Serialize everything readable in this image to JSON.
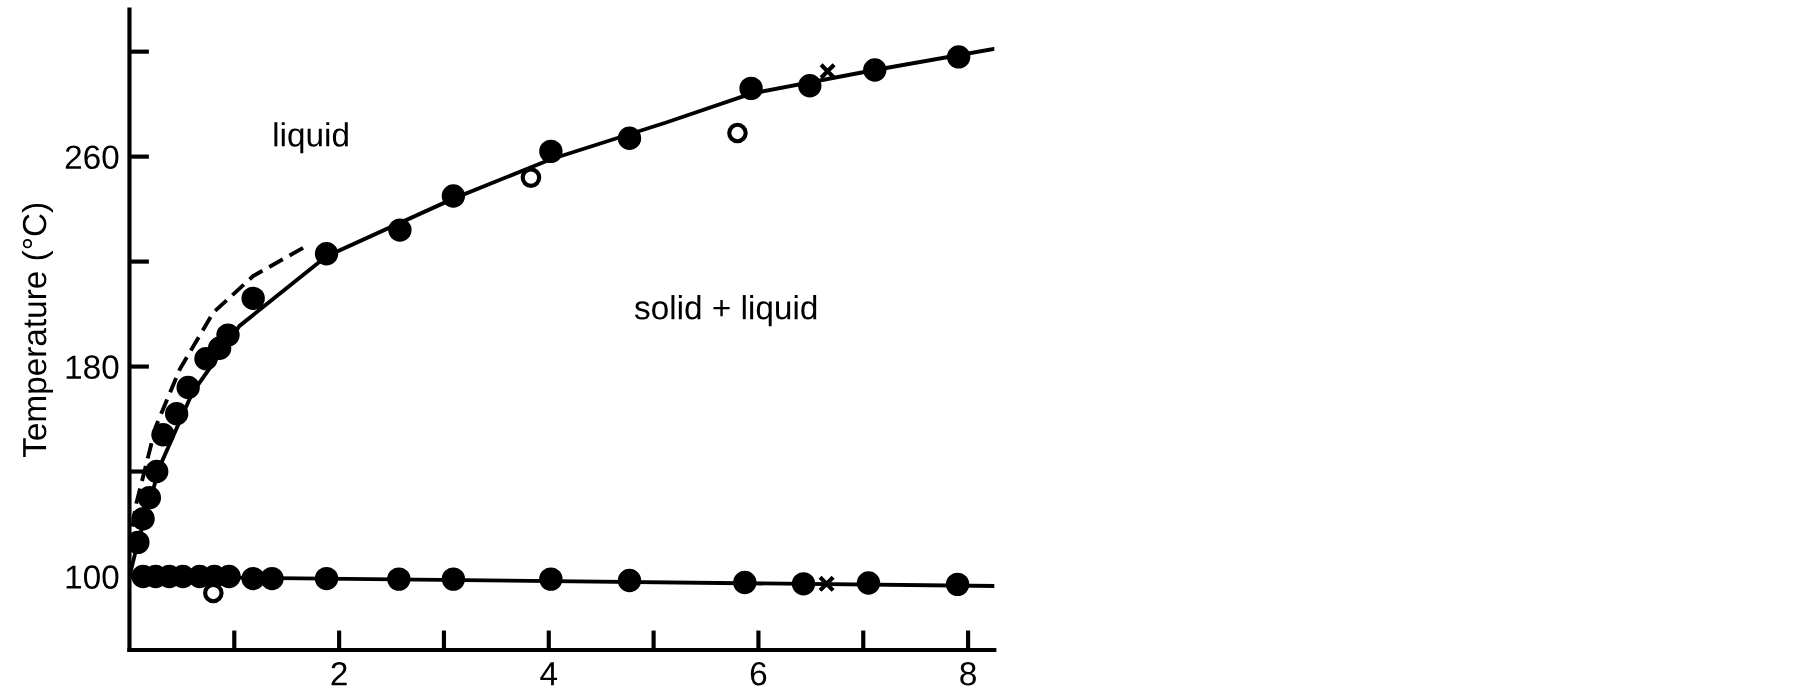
{
  "chart_data": {
    "type": "scatter",
    "ylabel": "Temperature (°C)",
    "xlim": [
      0,
      8.25
    ],
    "ylim": [
      72,
      316
    ],
    "xticks": [
      {
        "value": 1,
        "label": null
      },
      2,
      {
        "value": 3,
        "label": null
      },
      4,
      {
        "value": 5,
        "label": null
      },
      6,
      {
        "value": 7,
        "label": null
      },
      8
    ],
    "yticks": [
      100,
      {
        "value": 140,
        "label": null
      },
      180,
      {
        "value": 220,
        "label": null
      },
      260,
      {
        "value": 300,
        "label": null
      }
    ],
    "grid": false,
    "legend": false,
    "annotations": [
      "liquid",
      "solid + liquid"
    ],
    "series": [
      {
        "type": "line",
        "color": "#000000",
        "line_style": "solid",
        "marker": "none",
        "x": [
          0,
          0.08,
          0.29,
          0.6,
          1.05,
          1.88,
          3.09,
          4.02,
          5.12,
          5.93,
          7.11,
          8.24
        ],
        "values": [
          100,
          113,
          142,
          170,
          195.5,
          222,
          244,
          259,
          273,
          284,
          293,
          301
        ]
      },
      {
        "type": "line",
        "color": "#000000",
        "line_style": "dashed",
        "marker": "none",
        "x": [
          0.03,
          0.06,
          0.25,
          0.48,
          0.8,
          1.18,
          1.69
        ],
        "values": [
          119,
          127,
          157,
          179,
          200.6,
          214.5,
          226
        ]
      },
      {
        "type": "line",
        "color": "#000000",
        "line_style": "solid",
        "marker": "none",
        "x": [
          0,
          8.24
        ],
        "values": [
          100,
          96.4
        ]
      },
      {
        "color": "#000000",
        "marker": "circle",
        "x": [
          0.08,
          0.13,
          0.19,
          0.26,
          0.32,
          0.45,
          0.56,
          0.73,
          0.86,
          0.94,
          1.18,
          1.88,
          2.58,
          3.09,
          4.02,
          4.77,
          5.93,
          6.49,
          7.11,
          7.91
        ],
        "values": [
          113,
          122,
          130,
          140,
          154,
          162,
          172,
          183,
          187,
          192,
          206,
          223,
          232,
          245,
          262,
          267,
          286,
          287,
          293,
          298
        ]
      },
      {
        "color": "#000000",
        "marker": "circle",
        "x": [
          0.13,
          0.25,
          0.38,
          0.51,
          0.67,
          0.81,
          0.95,
          1.18,
          1.36,
          1.88,
          2.57,
          3.09,
          4.02,
          4.77,
          5.87,
          6.43,
          7.05,
          7.9
        ],
        "values": [
          100,
          100,
          100,
          100,
          100,
          100,
          100,
          99.2,
          99.2,
          99.2,
          99,
          99,
          99,
          98.5,
          97.7,
          97.2,
          97.5,
          97
        ]
      },
      {
        "color": "#000000",
        "marker": "open circle",
        "x": [
          3.83,
          5.8,
          0.8
        ],
        "values": [
          252,
          269,
          93.7
        ]
      },
      {
        "color": "#000000",
        "marker": "cross",
        "x": [
          6.66,
          6.65
        ],
        "values": [
          292.5,
          97.2
        ]
      }
    ]
  }
}
